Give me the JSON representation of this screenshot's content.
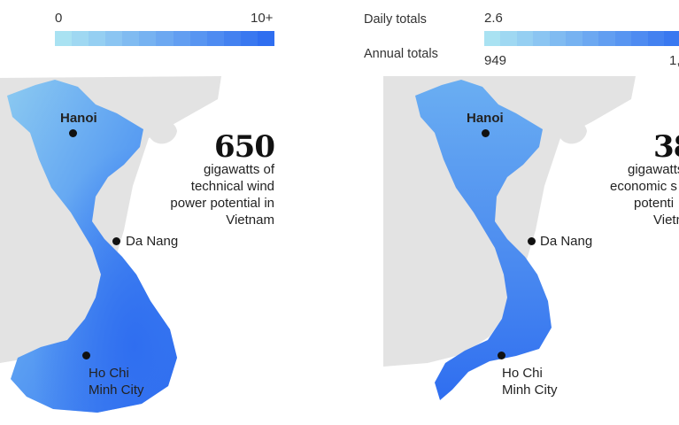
{
  "left_panel": {
    "legend": {
      "min_label": "0",
      "max_label": "10+"
    },
    "stat": {
      "number": "650",
      "line1": "gigawatts of",
      "line2": "technical wind",
      "line3": "power potential in",
      "line4": "Vietnam"
    },
    "cities": {
      "hanoi": "Hanoi",
      "da_nang": "Da Nang",
      "hcmc_line1": "Ho Chi",
      "hcmc_line2": "Minh City"
    }
  },
  "right_panel": {
    "legend": {
      "daily_label": "Daily totals",
      "annual_label": "Annual  totals",
      "daily_min": "2.6",
      "annual_min": "949",
      "annual_max_partial": "1,"
    },
    "stat": {
      "number": "38",
      "line1": "gigawatts",
      "line2": "economic s",
      "line3": "potenti",
      "line4": "Vietn"
    },
    "cities": {
      "hanoi": "Hanoi",
      "da_nang": "Da Nang",
      "hcmc_line1": "Ho Chi",
      "hcmc_line2": "Minh City"
    }
  },
  "colors": {
    "legend_light": "#a9e2f2",
    "legend_dark": "#2f6ef0",
    "land_gray": "#e3e3e3",
    "vietnam_light": "#7fbff0",
    "vietnam_dark": "#2f6ef0"
  }
}
